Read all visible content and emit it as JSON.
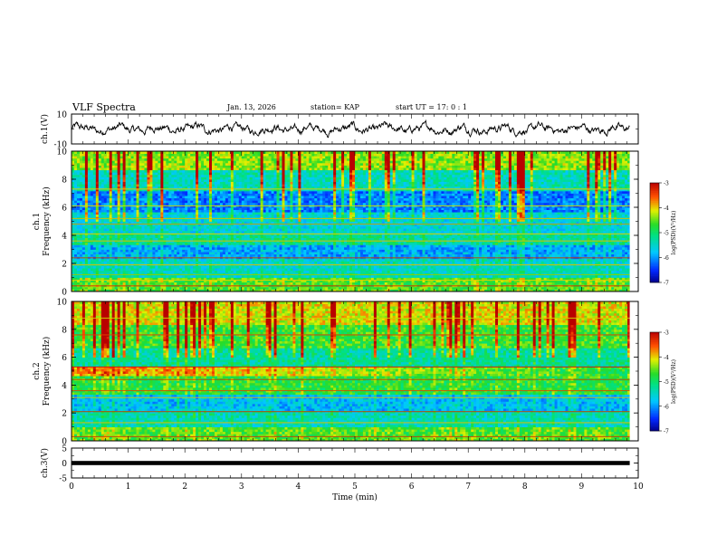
{
  "header": {
    "title": "VLF Spectra",
    "date": "Jan. 13, 2026",
    "station": "station= KAP",
    "start": "start UT =   17: 0  : 1"
  },
  "chart_data": [
    {
      "type": "line",
      "name": "ch1-waveform",
      "ylabel": "ch.1(V)",
      "ylim": [
        -10,
        10
      ],
      "yticks": [
        "10",
        "-10"
      ],
      "xlim": [
        0,
        10
      ]
    },
    {
      "type": "heatmap",
      "name": "ch1-spectrogram",
      "ylabel_top": "ch.1",
      "ylabel": "Frequency (kHz)",
      "ylim": [
        0,
        10
      ],
      "yticks": [
        "0",
        "2",
        "4",
        "6",
        "8",
        "10"
      ],
      "colorbar": {
        "label": "log(PSD)(V²/Hz)",
        "ticks": [
          "-3",
          "-4",
          "-5",
          "-6",
          "-7"
        ],
        "range": [
          -7,
          -3
        ]
      }
    },
    {
      "type": "heatmap",
      "name": "ch2-spectrogram",
      "ylabel_top": "ch.2",
      "ylabel": "Frequency (kHz)",
      "ylim": [
        0,
        10
      ],
      "yticks": [
        "0",
        "2",
        "4",
        "6",
        "8",
        "10"
      ],
      "colorbar": {
        "label": "log(PSD)(V²/Hz)",
        "ticks": [
          "-3",
          "-4",
          "-5",
          "-6",
          "-7"
        ],
        "range": [
          -7,
          -3
        ]
      }
    },
    {
      "type": "line",
      "name": "ch3-waveform",
      "ylabel": "ch.3(V)",
      "ylim": [
        -5,
        5
      ],
      "yticks": [
        "5",
        "0",
        "-5"
      ],
      "xlabel": "Time (min)",
      "xlim": [
        0,
        10
      ],
      "xticks": [
        "0",
        "1",
        "2",
        "3",
        "4",
        "5",
        "6",
        "7",
        "8",
        "9",
        "10"
      ],
      "data_end_min": 9.85
    }
  ]
}
